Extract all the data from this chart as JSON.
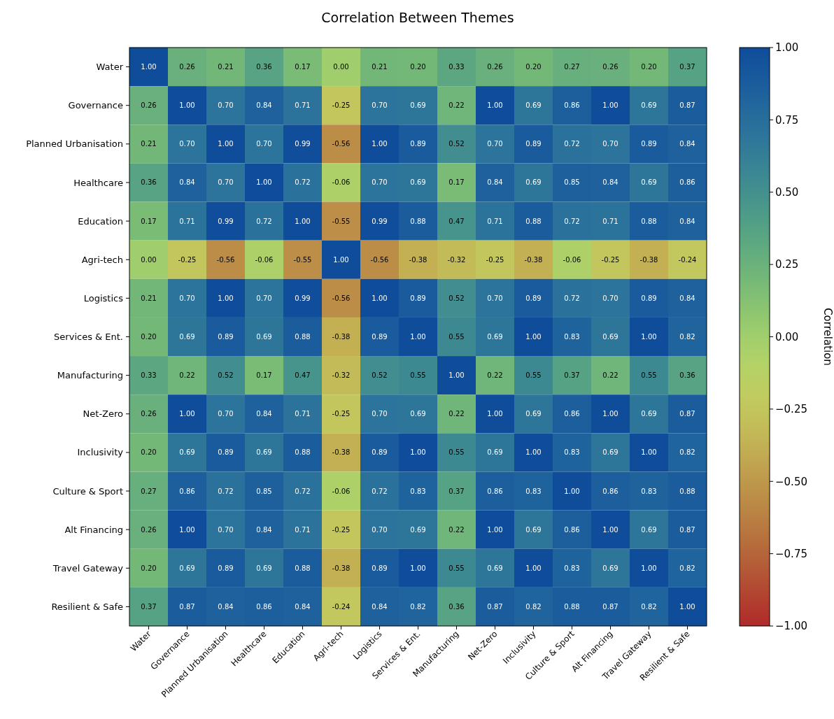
{
  "chart_data": {
    "type": "heatmap",
    "title": "Correlation Between Themes",
    "clabel": "Correlation",
    "categories": [
      "Water",
      "Governance",
      "Planned Urbanisation",
      "Healthcare",
      "Education",
      "Agri-tech",
      "Logistics",
      "Services & Ent.",
      "Manufacturing",
      "Net-Zero",
      "Inclusivity",
      "Culture & Sport",
      "Alt Financing",
      "Travel Gateway",
      "Resilient & Safe"
    ],
    "y_categories": [
      "Water",
      "Governance",
      "Planned Urbanisation",
      "Healthcare",
      "Education",
      "Agri-tech",
      "Logistics",
      "Services & Ent.",
      "Manufacturing",
      "Net-Zero",
      "Inclusivity",
      "Culture & Sport",
      "Alt Financing",
      "Travel Gateway",
      "Resilient & Safe"
    ],
    "cells": [
      [
        1.0,
        0.26,
        0.21,
        0.36,
        0.17,
        0.0,
        0.21,
        0.2,
        0.33,
        0.26,
        0.2,
        0.27,
        0.26,
        0.2,
        0.37
      ],
      [
        0.26,
        1.0,
        0.7,
        0.84,
        0.71,
        -0.25,
        0.7,
        0.69,
        0.22,
        1.0,
        0.69,
        0.86,
        1.0,
        0.69,
        0.87
      ],
      [
        0.21,
        0.7,
        1.0,
        0.7,
        0.99,
        -0.56,
        1.0,
        0.89,
        0.52,
        0.7,
        0.89,
        0.72,
        0.7,
        0.89,
        0.84
      ],
      [
        0.36,
        0.84,
        0.7,
        1.0,
        0.72,
        -0.06,
        0.7,
        0.69,
        0.17,
        0.84,
        0.69,
        0.85,
        0.84,
        0.69,
        0.86
      ],
      [
        0.17,
        0.71,
        0.99,
        0.72,
        1.0,
        -0.55,
        0.99,
        0.88,
        0.47,
        0.71,
        0.88,
        0.72,
        0.71,
        0.88,
        0.84
      ],
      [
        0.0,
        -0.25,
        -0.56,
        -0.06,
        -0.55,
        1.0,
        -0.56,
        -0.38,
        -0.32,
        -0.25,
        -0.38,
        -0.06,
        -0.25,
        -0.38,
        -0.24
      ],
      [
        0.21,
        0.7,
        1.0,
        0.7,
        0.99,
        -0.56,
        1.0,
        0.89,
        0.52,
        0.7,
        0.89,
        0.72,
        0.7,
        0.89,
        0.84
      ],
      [
        0.2,
        0.69,
        0.89,
        0.69,
        0.88,
        -0.38,
        0.89,
        1.0,
        0.55,
        0.69,
        1.0,
        0.83,
        0.69,
        1.0,
        0.82
      ],
      [
        0.33,
        0.22,
        0.52,
        0.17,
        0.47,
        -0.32,
        0.52,
        0.55,
        1.0,
        0.22,
        0.55,
        0.37,
        0.22,
        0.55,
        0.36
      ],
      [
        0.26,
        1.0,
        0.7,
        0.84,
        0.71,
        -0.25,
        0.7,
        0.69,
        0.22,
        1.0,
        0.69,
        0.86,
        1.0,
        0.69,
        0.87
      ],
      [
        0.2,
        0.69,
        0.89,
        0.69,
        0.88,
        -0.38,
        0.89,
        1.0,
        0.55,
        0.69,
        1.0,
        0.83,
        0.69,
        1.0,
        0.82
      ],
      [
        0.27,
        0.86,
        0.72,
        0.85,
        0.72,
        -0.06,
        0.72,
        0.83,
        0.37,
        0.86,
        0.83,
        1.0,
        0.86,
        0.83,
        0.88
      ],
      [
        0.26,
        1.0,
        0.7,
        0.84,
        0.71,
        -0.25,
        0.7,
        0.69,
        0.22,
        1.0,
        0.69,
        0.86,
        1.0,
        0.69,
        0.87
      ],
      [
        0.2,
        0.69,
        0.89,
        0.69,
        0.88,
        -0.38,
        0.89,
        1.0,
        0.55,
        0.69,
        1.0,
        0.83,
        0.69,
        1.0,
        0.82
      ],
      [
        0.37,
        0.87,
        0.84,
        0.86,
        0.84,
        -0.24,
        0.84,
        0.82,
        0.36,
        0.87,
        0.82,
        0.88,
        0.87,
        0.82,
        1.0
      ]
    ],
    "cell_labels": [
      [
        "1.00",
        "0.26",
        "0.21",
        "0.36",
        "0.17",
        "0.00",
        "0.21",
        "0.20",
        "0.33",
        "0.26",
        "0.20",
        "0.27",
        "0.26",
        "0.20",
        "0.37"
      ],
      [
        "0.26",
        "1.00",
        "0.70",
        "0.84",
        "0.71",
        "-0.25",
        "0.70",
        "0.69",
        "0.22",
        "1.00",
        "0.69",
        "0.86",
        "1.00",
        "0.69",
        "0.87"
      ],
      [
        "0.21",
        "0.70",
        "1.00",
        "0.70",
        "0.99",
        "-0.56",
        "1.00",
        "0.89",
        "0.52",
        "0.70",
        "0.89",
        "0.72",
        "0.70",
        "0.89",
        "0.84"
      ],
      [
        "0.36",
        "0.84",
        "0.70",
        "1.00",
        "0.72",
        "-0.06",
        "0.70",
        "0.69",
        "0.17",
        "0.84",
        "0.69",
        "0.85",
        "0.84",
        "0.69",
        "0.86"
      ],
      [
        "0.17",
        "0.71",
        "0.99",
        "0.72",
        "1.00",
        "-0.55",
        "0.99",
        "0.88",
        "0.47",
        "0.71",
        "0.88",
        "0.72",
        "0.71",
        "0.88",
        "0.84"
      ],
      [
        "0.00",
        "-0.25",
        "-0.56",
        "-0.06",
        "-0.55",
        "1.00",
        "-0.56",
        "-0.38",
        "-0.32",
        "-0.25",
        "-0.38",
        "-0.06",
        "-0.25",
        "-0.38",
        "-0.24"
      ],
      [
        "0.21",
        "0.70",
        "1.00",
        "0.70",
        "0.99",
        "-0.56",
        "1.00",
        "0.89",
        "0.52",
        "0.70",
        "0.89",
        "0.72",
        "0.70",
        "0.89",
        "0.84"
      ],
      [
        "0.20",
        "0.69",
        "0.89",
        "0.69",
        "0.88",
        "-0.38",
        "0.89",
        "1.00",
        "0.55",
        "0.69",
        "1.00",
        "0.83",
        "0.69",
        "1.00",
        "0.82"
      ],
      [
        "0.33",
        "0.22",
        "0.52",
        "0.17",
        "0.47",
        "-0.32",
        "0.52",
        "0.55",
        "1.00",
        "0.22",
        "0.55",
        "0.37",
        "0.22",
        "0.55",
        "0.36"
      ],
      [
        "0.26",
        "1.00",
        "0.70",
        "0.84",
        "0.71",
        "-0.25",
        "0.70",
        "0.69",
        "0.22",
        "1.00",
        "0.69",
        "0.86",
        "1.00",
        "0.69",
        "0.87"
      ],
      [
        "0.20",
        "0.69",
        "0.89",
        "0.69",
        "0.88",
        "-0.38",
        "0.89",
        "1.00",
        "0.55",
        "0.69",
        "1.00",
        "0.83",
        "0.69",
        "1.00",
        "0.82"
      ],
      [
        "0.27",
        "0.86",
        "0.72",
        "0.85",
        "0.72",
        "-0.06",
        "0.72",
        "0.83",
        "0.37",
        "0.86",
        "0.83",
        "1.00",
        "0.86",
        "0.83",
        "0.88"
      ],
      [
        "0.26",
        "1.00",
        "0.70",
        "0.84",
        "0.71",
        "-0.25",
        "0.70",
        "0.69",
        "0.22",
        "1.00",
        "0.69",
        "0.86",
        "1.00",
        "0.69",
        "0.87"
      ],
      [
        "0.20",
        "0.69",
        "0.89",
        "0.69",
        "0.88",
        "-0.38",
        "0.89",
        "1.00",
        "0.55",
        "0.69",
        "1.00",
        "0.83",
        "0.69",
        "1.00",
        "0.82"
      ],
      [
        "0.37",
        "0.87",
        "0.84",
        "0.86",
        "0.84",
        "-0.24",
        "0.84",
        "0.82",
        "0.36",
        "0.87",
        "0.82",
        "0.88",
        "0.87",
        "0.82",
        "1.00"
      ]
    ],
    "clim": [
      -1,
      1
    ],
    "cticks": [
      {
        "value": 1,
        "label": "1.00"
      },
      {
        "value": 0.75,
        "label": "0.75"
      },
      {
        "value": 0.5,
        "label": "0.50"
      },
      {
        "value": 0.25,
        "label": "0.25"
      },
      {
        "value": 0,
        "label": "0.00"
      },
      {
        "value": -0.25,
        "label": "−0.25"
      },
      {
        "value": -0.5,
        "label": "−0.50"
      },
      {
        "value": -0.75,
        "label": "−0.75"
      },
      {
        "value": -1,
        "label": "−1.00"
      }
    ]
  }
}
